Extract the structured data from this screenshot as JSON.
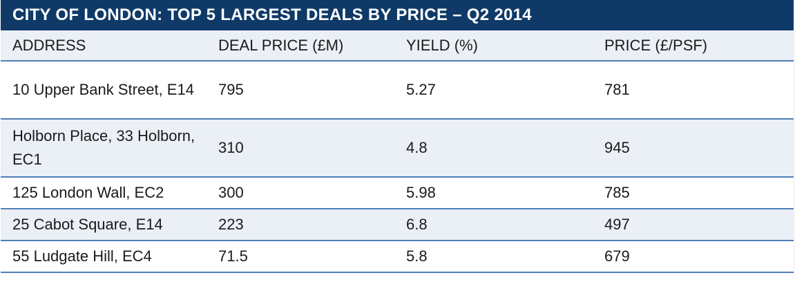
{
  "table": {
    "title": "CITY OF LONDON: TOP 5 LARGEST DEALS BY PRICE – Q2 2014",
    "headers": {
      "address": "ADDRESS",
      "deal_price": "DEAL PRICE (£M)",
      "yield": "YIELD (%)",
      "price_psf": "PRICE (£/PSF)"
    },
    "rows": [
      {
        "address": "10 Upper Bank Street, E14",
        "deal_price": "795",
        "yield": "5.27",
        "price_psf": "781"
      },
      {
        "address": "Holborn Place, 33 Holborn, EC1",
        "deal_price": "310",
        "yield": "4.8",
        "price_psf": "945"
      },
      {
        "address": "125 London Wall, EC2",
        "deal_price": "300",
        "yield": "5.98",
        "price_psf": "785"
      },
      {
        "address": "25 Cabot Square, E14",
        "deal_price": "223",
        "yield": "6.8",
        "price_psf": "497"
      },
      {
        "address": "55 Ludgate Hill, EC4",
        "deal_price": "71.5",
        "yield": "5.8",
        "price_psf": "679"
      }
    ]
  },
  "colors": {
    "title_background": "#0f3a68",
    "title_text": "#ffffff",
    "row_shade": "#eaf0f6",
    "row_rule": "#4f7db8"
  }
}
